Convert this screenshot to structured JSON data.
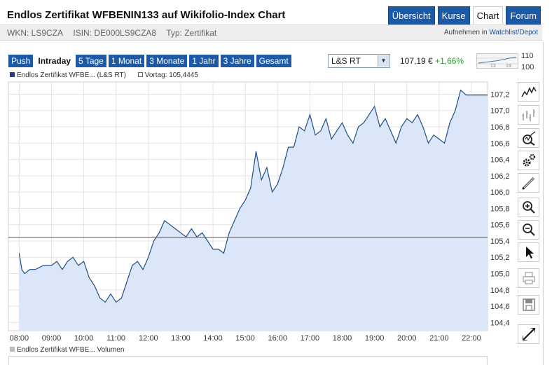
{
  "header": {
    "title": "Endlos Zertifikat WFBENIN133 auf Wikifolio-Index Chart",
    "nav": [
      {
        "label": "Übersicht",
        "active": false
      },
      {
        "label": "Kurse",
        "active": false
      },
      {
        "label": "Chart",
        "active": true
      },
      {
        "label": "Forum",
        "active": false
      }
    ]
  },
  "info": {
    "wkn": "WKN: LS9CZA",
    "isin": "ISIN: DE000LS9CZA8",
    "typ": "Typ: Zertifikat",
    "watchlist_prefix": "Aufnehmen in",
    "watchlist_link": "Watchlist/Depot"
  },
  "toolbar": {
    "ranges": [
      {
        "label": "Push",
        "active": false
      },
      {
        "label": "Intraday",
        "active": true
      },
      {
        "label": "5 Tage",
        "active": false
      },
      {
        "label": "1 Monat",
        "active": false
      },
      {
        "label": "3 Monate",
        "active": false
      },
      {
        "label": "1 Jahr",
        "active": false
      },
      {
        "label": "3 Jahre",
        "active": false
      },
      {
        "label": "Gesamt",
        "active": false
      }
    ],
    "exchange": "L&S RT",
    "price": "107,19 €",
    "change": "+1,66%",
    "mini_top": "110",
    "mini_bottom": "100",
    "mini_x1": "13",
    "mini_x2": "19"
  },
  "legend": {
    "series": "Endlos Zertifikat WFBE... (L&S RT)",
    "previous": "Vortag: 105,4445"
  },
  "volume_legend": "Endlos Zertifikat WFBE... Volumen",
  "colors": {
    "nav": "#1d5aa6",
    "line": "#1e4f86",
    "fill": "#dbe7f8",
    "change_up": "#2d9e2d"
  },
  "tools": [
    "line-chart-icon",
    "ohlc-chart-icon",
    "indicator-search-icon",
    "settings-gears-icon",
    "draw-pen-icon",
    "zoom-in-icon",
    "zoom-out-icon",
    "pointer-icon",
    "print-icon",
    "save-icon",
    "fullscreen-icon"
  ],
  "chart_data": {
    "type": "area",
    "x_ticks": [
      "08:00",
      "09:00",
      "10:00",
      "11:00",
      "12:00",
      "13:00",
      "14:00",
      "15:00",
      "16:00",
      "17:00",
      "18:00",
      "19:00",
      "20:00",
      "21:00",
      "22:00"
    ],
    "y_ticks": [
      "104,4",
      "104,6",
      "104,8",
      "105,0",
      "105,2",
      "105,4",
      "105,6",
      "105,8",
      "106,0",
      "106,2",
      "106,4",
      "106,6",
      "106,8",
      "107,0",
      "107,2"
    ],
    "ylim": [
      104.3,
      107.35
    ],
    "xlim": [
      "07:40",
      "22:30"
    ],
    "previous_close": 105.4445,
    "series": [
      {
        "x": [
          "08:00",
          "08:05",
          "08:10",
          "08:20",
          "08:30",
          "08:45",
          "09:00",
          "09:10",
          "09:20",
          "09:30",
          "09:40",
          "09:50",
          "10:00",
          "10:10",
          "10:20",
          "10:30",
          "10:40",
          "10:50",
          "11:00",
          "11:10",
          "11:20",
          "11:30",
          "11:40",
          "11:50",
          "12:00",
          "12:10",
          "12:20",
          "12:30",
          "12:40",
          "12:50",
          "13:00",
          "13:10",
          "13:20",
          "13:30",
          "13:40",
          "13:50",
          "14:00",
          "14:10",
          "14:20",
          "14:30",
          "14:40",
          "14:50",
          "15:00",
          "15:10",
          "15:20",
          "15:30",
          "15:40",
          "15:50",
          "16:00",
          "16:10",
          "16:20",
          "16:30",
          "16:40",
          "16:50",
          "17:00",
          "17:10",
          "17:20",
          "17:30",
          "17:40",
          "17:50",
          "18:00",
          "18:10",
          "18:20",
          "18:30",
          "18:40",
          "18:50",
          "19:00",
          "19:10",
          "19:20",
          "19:30",
          "19:40",
          "19:50",
          "20:00",
          "20:10",
          "20:20",
          "20:30",
          "20:40",
          "20:50",
          "21:00",
          "21:10",
          "21:20",
          "21:30",
          "21:40",
          "21:50",
          "22:00",
          "22:30"
        ],
        "values": [
          105.25,
          105.05,
          105.0,
          105.05,
          105.05,
          105.1,
          105.1,
          105.15,
          105.05,
          105.15,
          105.2,
          105.1,
          105.15,
          104.95,
          104.85,
          104.7,
          104.65,
          104.75,
          104.65,
          104.7,
          104.9,
          105.1,
          105.15,
          105.05,
          105.2,
          105.4,
          105.5,
          105.65,
          105.6,
          105.55,
          105.5,
          105.45,
          105.55,
          105.45,
          105.5,
          105.4,
          105.3,
          105.3,
          105.25,
          105.5,
          105.65,
          105.8,
          105.9,
          106.05,
          106.5,
          106.15,
          106.3,
          106.0,
          106.1,
          106.3,
          106.55,
          106.55,
          106.8,
          106.75,
          106.95,
          106.7,
          106.75,
          106.9,
          106.65,
          106.75,
          106.85,
          106.7,
          106.6,
          106.8,
          106.85,
          106.95,
          107.05,
          106.8,
          106.9,
          106.75,
          106.6,
          106.8,
          106.9,
          106.85,
          106.95,
          106.8,
          106.6,
          106.7,
          106.65,
          106.6,
          106.85,
          107.0,
          107.25,
          107.19,
          107.19,
          107.19
        ]
      }
    ]
  }
}
